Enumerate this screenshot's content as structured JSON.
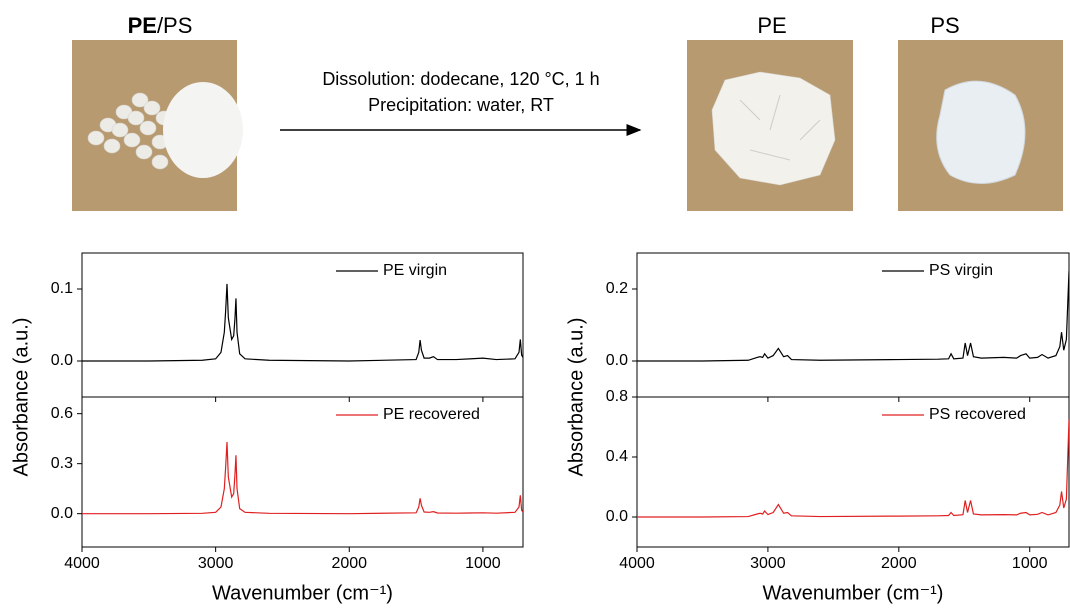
{
  "figure": {
    "mixture_label": {
      "bold": "PE",
      "rest": "/PS"
    },
    "product_labels": [
      "PE",
      "PS"
    ],
    "conditions": [
      "Dissolution: dodecane, 120 °C, 1 h",
      "Precipitation: water, RT"
    ]
  },
  "chart_data": [
    {
      "type": "line",
      "y_label": "Absorbance (a.u.)",
      "x": [
        4000,
        3500,
        3100,
        3000,
        2960,
        2935,
        2925,
        2915,
        2905,
        2880,
        2865,
        2855,
        2848,
        2840,
        2820,
        2780,
        2600,
        2000,
        1500,
        1480,
        1470,
        1460,
        1440,
        1400,
        1370,
        1340,
        1200,
        1100,
        1000,
        900,
        760,
        730,
        720,
        710,
        700
      ],
      "series": [
        {
          "name": "PE virgin",
          "color": "#000000",
          "values": [
            0,
            0,
            0.001,
            0.003,
            0.012,
            0.04,
            0.07,
            0.107,
            0.06,
            0.03,
            0.035,
            0.06,
            0.087,
            0.04,
            0.01,
            0.003,
            0.001,
            0,
            0.002,
            0.012,
            0.029,
            0.015,
            0.004,
            0.004,
            0.006,
            0.002,
            0.002,
            0.003,
            0.004,
            0.002,
            0.003,
            0.012,
            0.03,
            0.008,
            0.005
          ]
        }
      ],
      "xlim": [
        4000,
        700
      ],
      "xticks": [
        4000,
        3000,
        2000,
        1000
      ],
      "ylim": [
        -0.05,
        0.15
      ],
      "yticks": [
        {
          "value": 0,
          "label": "0.0"
        },
        0.1
      ],
      "legend": "upper right"
    },
    {
      "type": "line",
      "x_label": "Wavenumber (cm⁻¹)",
      "x": [
        4000,
        3500,
        3100,
        3000,
        2960,
        2935,
        2925,
        2915,
        2905,
        2880,
        2865,
        2855,
        2848,
        2840,
        2820,
        2780,
        2600,
        2000,
        1500,
        1480,
        1470,
        1460,
        1440,
        1400,
        1370,
        1340,
        1200,
        1100,
        1000,
        900,
        760,
        730,
        720,
        710,
        700
      ],
      "series": [
        {
          "name": "PE recovered",
          "color": "#e02020",
          "values": [
            0,
            0,
            0.002,
            0.008,
            0.04,
            0.15,
            0.28,
            0.43,
            0.22,
            0.1,
            0.12,
            0.24,
            0.35,
            0.15,
            0.03,
            0.008,
            0.002,
            0,
            0.005,
            0.04,
            0.092,
            0.05,
            0.01,
            0.008,
            0.012,
            0.004,
            0.003,
            0.004,
            0.005,
            0.003,
            0.008,
            0.04,
            0.11,
            0.02,
            0.01
          ]
        }
      ],
      "xlim": [
        4000,
        700
      ],
      "xticks": [
        4000,
        3000,
        2000,
        1000
      ],
      "ylim": [
        -0.2,
        0.7
      ],
      "yticks": [
        {
          "value": 0,
          "label": "0.0"
        },
        0.3,
        0.6
      ],
      "legend": "upper right"
    },
    {
      "type": "line",
      "y_label": "Absorbance (a.u.)",
      "x": [
        4000,
        3500,
        3150,
        3082,
        3060,
        3040,
        3025,
        3000,
        2960,
        2920,
        2880,
        2850,
        2820,
        2600,
        2000,
        1700,
        1620,
        1601,
        1580,
        1510,
        1493,
        1475,
        1452,
        1430,
        1370,
        1200,
        1100,
        1070,
        1028,
        1000,
        940,
        906,
        860,
        800,
        770,
        757,
        740,
        720,
        700
      ],
      "series": [
        {
          "name": "PS virgin",
          "color": "#000000",
          "values": [
            0,
            0,
            0.002,
            0.01,
            0.012,
            0.01,
            0.02,
            0.008,
            0.015,
            0.035,
            0.012,
            0.015,
            0.004,
            0.002,
            0.004,
            0.005,
            0.006,
            0.02,
            0.006,
            0.008,
            0.05,
            0.015,
            0.05,
            0.012,
            0.008,
            0.01,
            0.008,
            0.015,
            0.02,
            0.008,
            0.01,
            0.018,
            0.008,
            0.015,
            0.04,
            0.08,
            0.03,
            0.06,
            0.25
          ]
        }
      ],
      "xlim": [
        4000,
        700
      ],
      "xticks": [
        4000,
        3000,
        2000,
        1000
      ],
      "ylim": [
        -0.1,
        0.3
      ],
      "yticks": [
        {
          "value": 0,
          "label": "0.0"
        },
        {
          "value": 0.2,
          "label": "0.2"
        }
      ],
      "legend": "upper right"
    },
    {
      "type": "line",
      "x_label": "Wavenumber (cm⁻¹)",
      "x": [
        4000,
        3500,
        3150,
        3082,
        3060,
        3040,
        3025,
        3000,
        2960,
        2920,
        2880,
        2850,
        2820,
        2600,
        2000,
        1700,
        1620,
        1601,
        1580,
        1510,
        1493,
        1475,
        1452,
        1430,
        1370,
        1200,
        1100,
        1070,
        1028,
        1000,
        940,
        906,
        860,
        800,
        770,
        757,
        740,
        720,
        700
      ],
      "series": [
        {
          "name": "PS recovered",
          "color": "#e02020",
          "values": [
            0,
            0,
            0.003,
            0.02,
            0.025,
            0.02,
            0.04,
            0.016,
            0.03,
            0.083,
            0.025,
            0.03,
            0.008,
            0.003,
            0.006,
            0.008,
            0.01,
            0.03,
            0.01,
            0.015,
            0.11,
            0.03,
            0.11,
            0.02,
            0.014,
            0.016,
            0.014,
            0.025,
            0.03,
            0.014,
            0.018,
            0.03,
            0.014,
            0.03,
            0.08,
            0.17,
            0.06,
            0.12,
            0.65
          ]
        }
      ],
      "xlim": [
        4000,
        700
      ],
      "xticks": [
        4000,
        3000,
        2000,
        1000
      ],
      "ylim": [
        -0.2,
        0.8
      ],
      "yticks": [
        {
          "value": 0,
          "label": "0.0"
        },
        0.4,
        0.8
      ],
      "legend": "upper right"
    }
  ]
}
